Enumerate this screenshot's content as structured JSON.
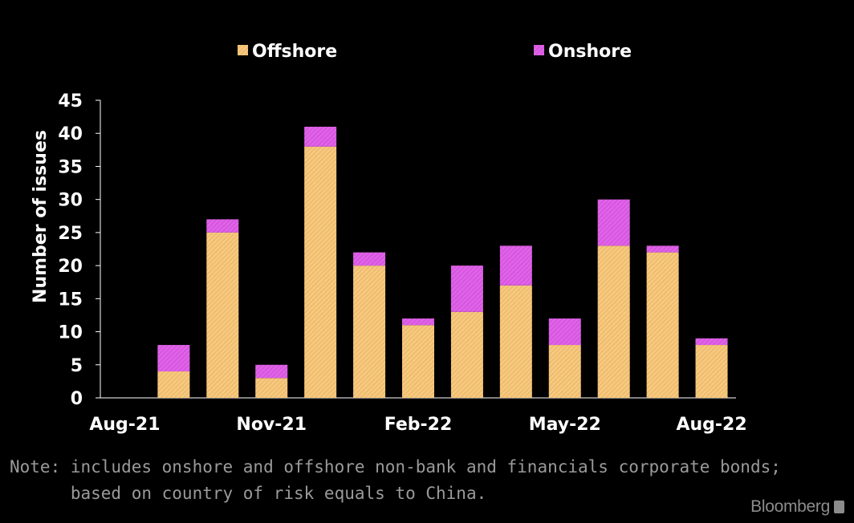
{
  "chart_data": {
    "type": "bar",
    "stacked": true,
    "categories": [
      "Aug-21",
      "Sep-21",
      "Oct-21",
      "Nov-21",
      "Dec-21",
      "Jan-22",
      "Feb-22",
      "Mar-22",
      "Apr-22",
      "May-22",
      "Jun-22",
      "Jul-22",
      "Aug-22"
    ],
    "x_tick_labels": [
      "Aug-21",
      "Nov-21",
      "Feb-22",
      "May-22",
      "Aug-22"
    ],
    "series": [
      {
        "name": "Offshore",
        "color": "#f6c97e",
        "values": [
          0,
          4,
          25,
          3,
          38,
          20,
          11,
          13,
          17,
          8,
          23,
          22,
          8
        ]
      },
      {
        "name": "Onshore",
        "color": "#e062e8",
        "values": [
          0,
          4,
          2,
          2,
          3,
          2,
          1,
          7,
          6,
          4,
          7,
          1,
          1
        ]
      }
    ],
    "ylabel": "Number of issues",
    "ylim": [
      0,
      45
    ],
    "yticks": [
      0,
      5,
      10,
      15,
      20,
      25,
      30,
      35,
      40,
      45
    ],
    "legend_position": "top",
    "grid": false
  },
  "note": {
    "line1": "Note: includes onshore and offshore non-bank and financials corporate bonds;",
    "line2": "      based on country of risk equals to China."
  },
  "brand": "Bloomberg"
}
